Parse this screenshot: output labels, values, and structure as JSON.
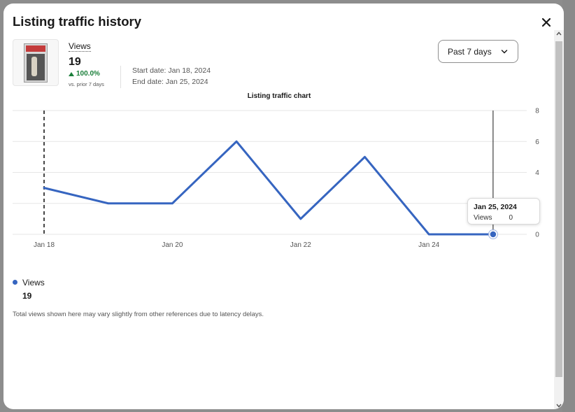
{
  "modal": {
    "title": "Listing traffic history",
    "close_icon": "close-icon"
  },
  "summary": {
    "views_label": "Views",
    "views_value": "19",
    "change": "100.0%",
    "change_direction": "up",
    "change_color": "#1b7f3a",
    "prior_label": "vs. prior 7 days",
    "start_date": "Start date: Jan 18, 2024",
    "end_date": "End date: Jan 25, 2024"
  },
  "range_select": {
    "value": "Past 7 days",
    "icon": "chevron-down-icon"
  },
  "chart_data": {
    "type": "line",
    "title": "Listing traffic chart",
    "x": [
      "Jan 18",
      "Jan 19",
      "Jan 20",
      "Jan 21",
      "Jan 22",
      "Jan 23",
      "Jan 24",
      "Jan 25"
    ],
    "x_tick_labels": [
      "Jan 18",
      "Jan 20",
      "Jan 22",
      "Jan 24"
    ],
    "series": [
      {
        "name": "Views",
        "values": [
          3,
          2,
          2,
          6,
          1,
          5,
          0,
          0
        ],
        "color": "#3665c0"
      }
    ],
    "y_ticks": [
      "8",
      "6",
      "4",
      "2",
      "0"
    ],
    "ylim": [
      0,
      8
    ],
    "grid": true,
    "y_axis_position": "right",
    "reference_line_dashed": "Jan 18",
    "hover_line": "Jan 25"
  },
  "tooltip": {
    "date": "Jan 25, 2024",
    "label": "Views",
    "value": "0"
  },
  "legend": {
    "label": "Views",
    "total": "19",
    "color": "#3665c0"
  },
  "disclaimer": "Total views shown here may vary slightly from other references due to latency delays."
}
